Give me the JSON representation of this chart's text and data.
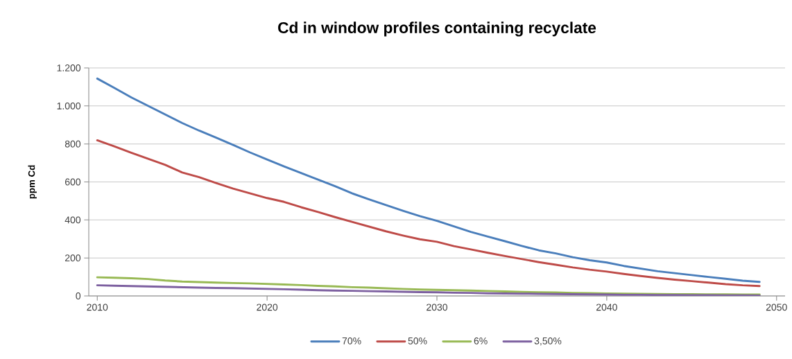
{
  "chart_data": {
    "type": "line",
    "title": "Cd in window profiles containing recyclate",
    "ylabel": "ppm Cd",
    "x": [
      2010,
      2011,
      2012,
      2013,
      2014,
      2015,
      2016,
      2017,
      2018,
      2019,
      2020,
      2021,
      2022,
      2023,
      2024,
      2025,
      2026,
      2027,
      2028,
      2029,
      2030,
      2031,
      2032,
      2033,
      2034,
      2035,
      2036,
      2037,
      2038,
      2039,
      2040,
      2041,
      2042,
      2043,
      2044,
      2045,
      2046,
      2047,
      2048,
      2049
    ],
    "series": [
      {
        "name": "70%",
        "color": "#4a7ebb",
        "values": [
          1144,
          1095,
          1045,
          1000,
          955,
          910,
          870,
          833,
          795,
          755,
          718,
          682,
          647,
          612,
          578,
          540,
          508,
          478,
          448,
          420,
          395,
          366,
          337,
          312,
          288,
          263,
          240,
          224,
          204,
          188,
          176,
          158,
          144,
          130,
          120,
          110,
          100,
          90,
          80,
          74
        ]
      },
      {
        "name": "50%",
        "color": "#be4b48",
        "values": [
          819,
          787,
          754,
          722,
          690,
          650,
          625,
          594,
          565,
          540,
          515,
          495,
          467,
          442,
          415,
          390,
          365,
          340,
          318,
          298,
          285,
          262,
          245,
          227,
          210,
          194,
          178,
          164,
          150,
          138,
          128,
          116,
          105,
          95,
          86,
          78,
          70,
          62,
          56,
          52
        ]
      },
      {
        "name": "6%",
        "color": "#98b954",
        "values": [
          98,
          96,
          93,
          89,
          81,
          76,
          73,
          70,
          68,
          66,
          63,
          60,
          57,
          53,
          50,
          46,
          44,
          40,
          37,
          34,
          32,
          30,
          28,
          26,
          24,
          21,
          19,
          18,
          16,
          15,
          13,
          12,
          11,
          10,
          9,
          9,
          8,
          8,
          7,
          7
        ]
      },
      {
        "name": "3,50%",
        "color": "#7d60a0",
        "values": [
          56,
          54,
          52,
          50,
          48,
          46,
          44,
          42,
          41,
          39,
          37,
          35,
          33,
          30,
          28,
          27,
          25,
          24,
          22,
          20,
          19,
          17,
          16,
          14,
          13,
          12,
          11,
          10,
          9,
          8,
          7,
          6,
          6,
          5,
          5,
          4,
          4,
          3,
          3,
          2
        ]
      }
    ],
    "xlim": [
      2009.5,
      2050.5
    ],
    "xticks": [
      2010,
      2020,
      2030,
      2040,
      2050
    ],
    "ylim": [
      0,
      1200
    ],
    "yticks": [
      0,
      200,
      400,
      600,
      800,
      {
        "value": 1000,
        "label": "1.000"
      },
      {
        "value": 1200,
        "label": "1.200"
      }
    ],
    "grid": "y",
    "legend": "bottom",
    "marker": "none",
    "line_style": "solid"
  }
}
